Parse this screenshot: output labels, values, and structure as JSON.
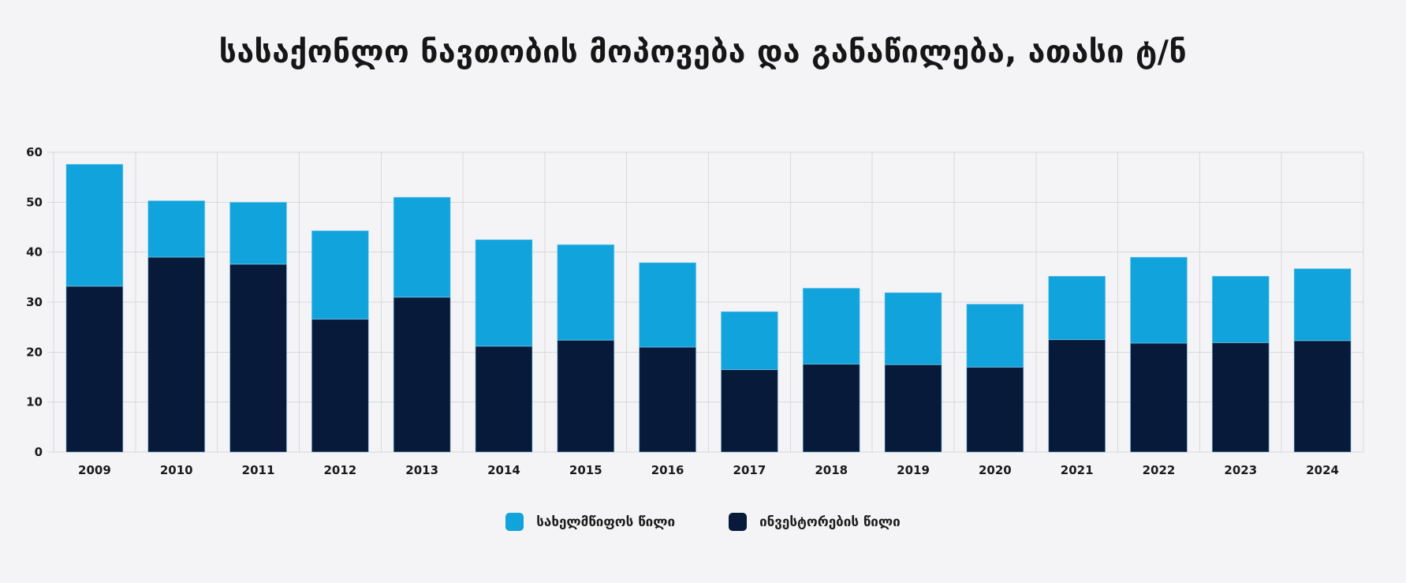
{
  "title": "სასაქონლო ნავთობის მოპოვება და განაწილება, ათასი ტ/ნ",
  "chart_data": {
    "type": "bar",
    "subtype": "stacked-column",
    "categories": [
      "2009",
      "2010",
      "2011",
      "2012",
      "2013",
      "2014",
      "2015",
      "2016",
      "2017",
      "2018",
      "2019",
      "2020",
      "2021",
      "2022",
      "2023",
      "2024"
    ],
    "series": [
      {
        "name": "სახელმწიფოს წილი",
        "color": "#10A3DC",
        "values": [
          24.4,
          11.3,
          12.4,
          17.7,
          20.0,
          21.3,
          19.1,
          16.9,
          11.6,
          15.2,
          14.4,
          12.6,
          12.7,
          17.2,
          13.3,
          14.4
        ]
      },
      {
        "name": "ინვესტორების წილი",
        "color": "#071A3A",
        "values": [
          33.2,
          39.0,
          37.6,
          26.6,
          31.0,
          21.2,
          22.4,
          21.0,
          16.5,
          17.6,
          17.5,
          17.0,
          22.5,
          21.8,
          21.9,
          22.3
        ]
      }
    ],
    "totals": [
      57.6,
      50.3,
      50.0,
      44.3,
      51.0,
      42.5,
      41.5,
      37.9,
      28.1,
      32.8,
      31.9,
      29.6,
      35.2,
      39.0,
      35.2,
      36.7
    ],
    "stack_order_bottom_to_top": [
      "ინვესტორების წილი",
      "სახელმწიფოს წილი"
    ],
    "xlabel": "",
    "ylabel": "",
    "ylim": [
      0,
      60
    ],
    "yticks": [
      0,
      10,
      20,
      30,
      40,
      50,
      60
    ],
    "grid": true,
    "legend_position": "bottom"
  }
}
